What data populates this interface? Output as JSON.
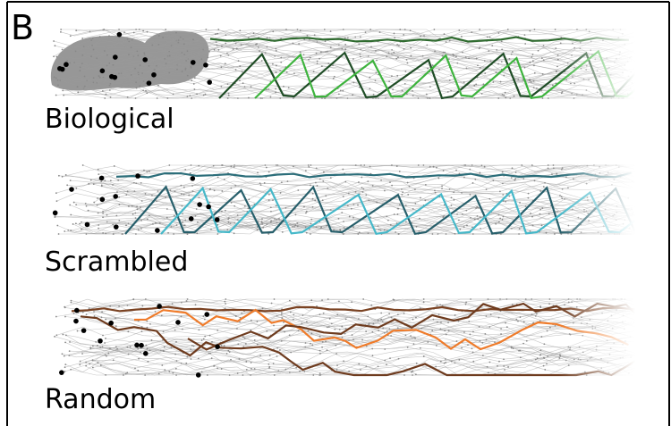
{
  "panel_label": "B",
  "rows": [
    {
      "label": "Biological"
    },
    {
      "label": "Scrambled"
    },
    {
      "label": "Random"
    }
  ]
}
